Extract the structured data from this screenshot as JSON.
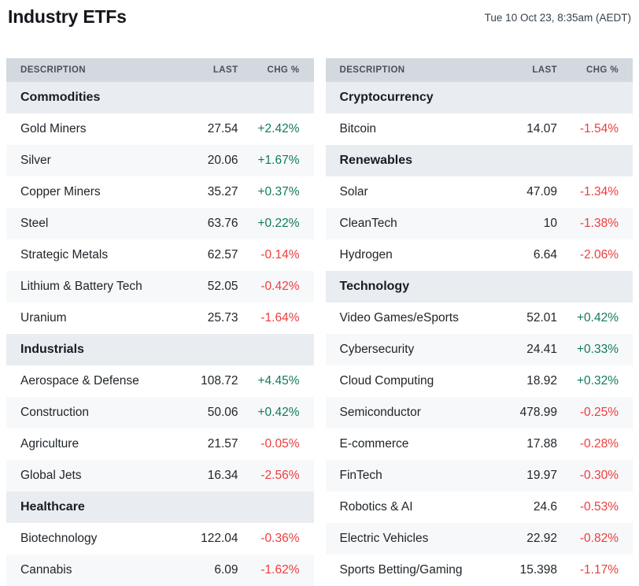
{
  "header": {
    "title": "Industry ETFs",
    "datetime": "Tue 10 Oct 23, 8:35am (AEDT)"
  },
  "colors": {
    "positive": "#117a60",
    "negative": "#ef3c3e",
    "table_header_bg": "#d3d9de",
    "section_bg": "#e9edf1",
    "stripe_bg": "#f7f8f9"
  },
  "columns": [
    "DESCRIPTION",
    "LAST",
    "CHG %"
  ],
  "tables": [
    {
      "name": "left",
      "sections": [
        {
          "label": "Commodities",
          "rows": [
            {
              "description": "Gold Miners",
              "last": "27.54",
              "chg": "+2.42%"
            },
            {
              "description": "Silver",
              "last": "20.06",
              "chg": "+1.67%"
            },
            {
              "description": "Copper Miners",
              "last": "35.27",
              "chg": "+0.37%"
            },
            {
              "description": "Steel",
              "last": "63.76",
              "chg": "+0.22%"
            },
            {
              "description": "Strategic Metals",
              "last": "62.57",
              "chg": "-0.14%"
            },
            {
              "description": "Lithium & Battery Tech",
              "last": "52.05",
              "chg": "-0.42%"
            },
            {
              "description": "Uranium",
              "last": "25.73",
              "chg": "-1.64%"
            }
          ]
        },
        {
          "label": "Industrials",
          "rows": [
            {
              "description": "Aerospace & Defense",
              "last": "108.72",
              "chg": "+4.45%"
            },
            {
              "description": "Construction",
              "last": "50.06",
              "chg": "+0.42%"
            },
            {
              "description": "Agriculture",
              "last": "21.57",
              "chg": "-0.05%"
            },
            {
              "description": "Global Jets",
              "last": "16.34",
              "chg": "-2.56%"
            }
          ]
        },
        {
          "label": "Healthcare",
          "rows": [
            {
              "description": "Biotechnology",
              "last": "122.04",
              "chg": "-0.36%"
            },
            {
              "description": "Cannabis",
              "last": "6.09",
              "chg": "-1.62%"
            }
          ]
        }
      ]
    },
    {
      "name": "right",
      "sections": [
        {
          "label": "Cryptocurrency",
          "rows": [
            {
              "description": "Bitcoin",
              "last": "14.07",
              "chg": "-1.54%"
            }
          ]
        },
        {
          "label": "Renewables",
          "rows": [
            {
              "description": "Solar",
              "last": "47.09",
              "chg": "-1.34%"
            },
            {
              "description": "CleanTech",
              "last": "10",
              "chg": "-1.38%"
            },
            {
              "description": "Hydrogen",
              "last": "6.64",
              "chg": "-2.06%"
            }
          ]
        },
        {
          "label": "Technology",
          "rows": [
            {
              "description": "Video Games/eSports",
              "last": "52.01",
              "chg": "+0.42%"
            },
            {
              "description": "Cybersecurity",
              "last": "24.41",
              "chg": "+0.33%"
            },
            {
              "description": "Cloud Computing",
              "last": "18.92",
              "chg": "+0.32%"
            },
            {
              "description": "Semiconductor",
              "last": "478.99",
              "chg": "-0.25%"
            },
            {
              "description": "E-commerce",
              "last": "17.88",
              "chg": "-0.28%"
            },
            {
              "description": "FinTech",
              "last": "19.97",
              "chg": "-0.30%"
            },
            {
              "description": "Robotics & AI",
              "last": "24.6",
              "chg": "-0.53%"
            },
            {
              "description": "Electric Vehicles",
              "last": "22.92",
              "chg": "-0.82%"
            },
            {
              "description": "Sports Betting/Gaming",
              "last": "15.398",
              "chg": "-1.17%"
            }
          ]
        }
      ]
    }
  ]
}
